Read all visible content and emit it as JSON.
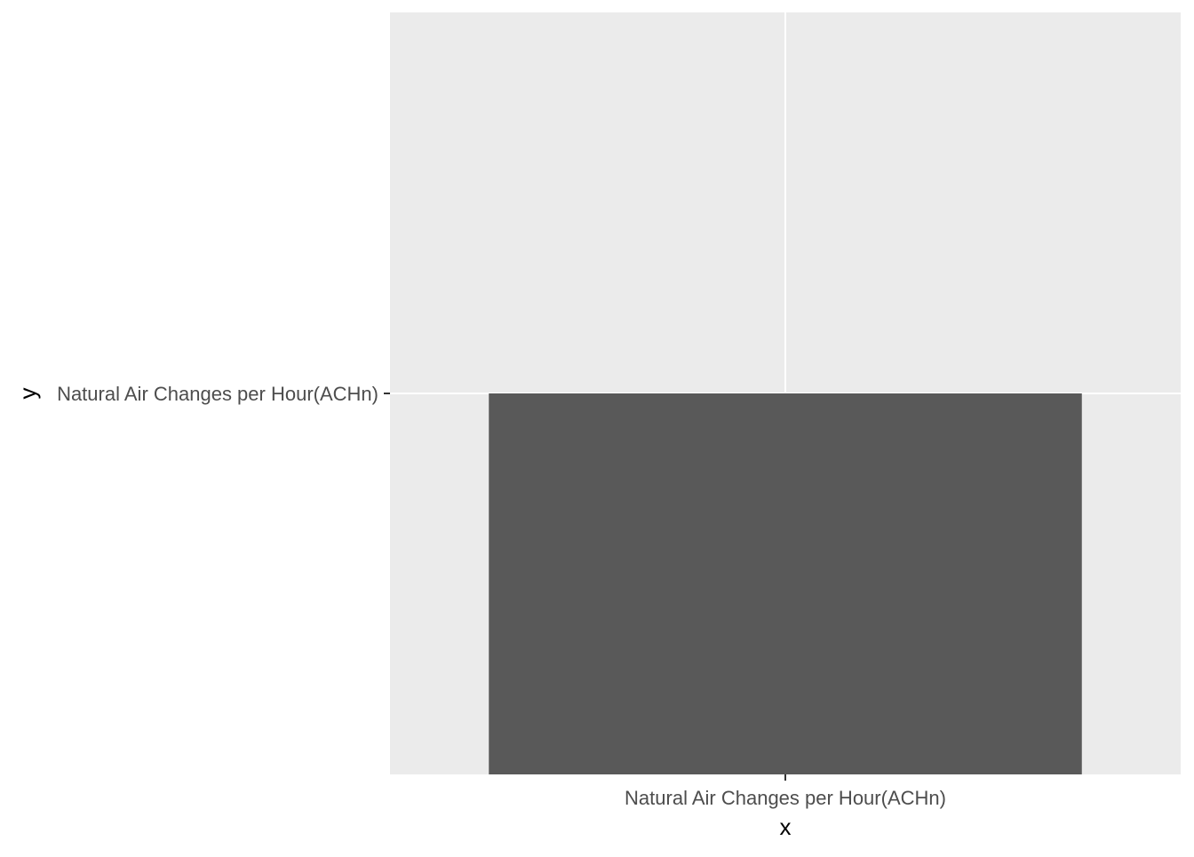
{
  "chart_data": {
    "type": "bar",
    "categories": [
      "Natural Air Changes per Hour(ACHn)"
    ],
    "y_categories": [
      "Natural Air Changes per Hour(ACHn)"
    ],
    "values": [
      "Natural Air Changes per Hour(ACHn)"
    ],
    "title": "",
    "xlabel": "x",
    "ylabel": "y",
    "grid": true,
    "legend": "none",
    "colors": {
      "panel_background": "#ebebeb",
      "grid_line": "#ffffff",
      "bar_fill": "#595959",
      "tick_text": "#4d4d4d",
      "axis_title": "#000000",
      "tick_mark": "#333333"
    }
  }
}
